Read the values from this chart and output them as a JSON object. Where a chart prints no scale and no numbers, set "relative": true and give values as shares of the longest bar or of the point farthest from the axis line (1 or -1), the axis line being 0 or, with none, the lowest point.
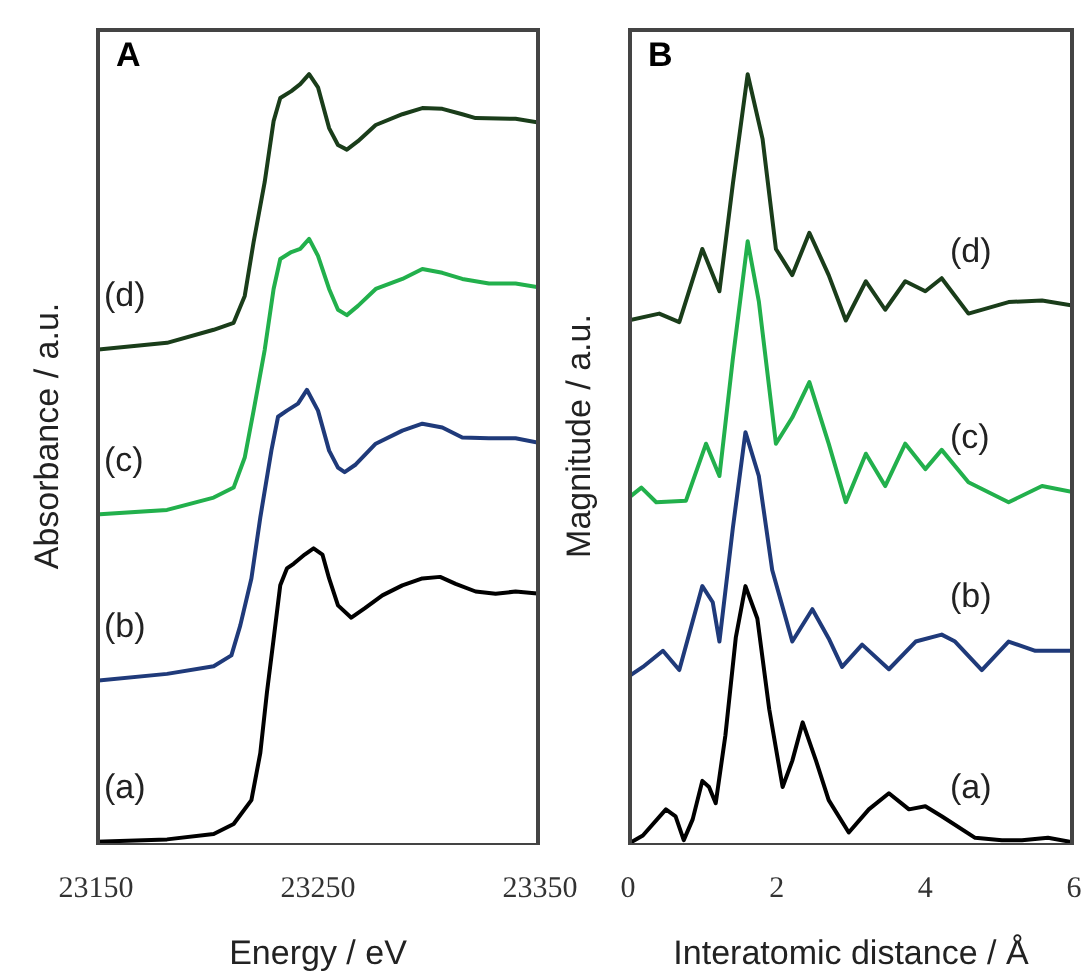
{
  "chart_data": [
    {
      "type": "line",
      "title": "A",
      "xlabel": "Energy / eV",
      "ylabel": "Absorbance / a.u.",
      "relative": true,
      "xlim": [
        23150,
        23350
      ],
      "xticks": [
        23150,
        23250,
        23350
      ],
      "marker": "none",
      "series": [
        {
          "name": "(a)",
          "color": "#000000",
          "x": [
            23150,
            23182,
            23203,
            23212,
            23220,
            23224,
            23227,
            23230,
            23233,
            23236,
            23239,
            23244,
            23248,
            23252,
            23255,
            23259,
            23265,
            23271,
            23279,
            23288,
            23297,
            23305,
            23312,
            23321,
            23330,
            23339,
            23350
          ],
          "values": [
            0.003,
            0.006,
            0.013,
            0.026,
            0.057,
            0.118,
            0.197,
            0.266,
            0.336,
            0.358,
            0.364,
            0.376,
            0.384,
            0.376,
            0.345,
            0.31,
            0.294,
            0.306,
            0.323,
            0.336,
            0.345,
            0.347,
            0.338,
            0.328,
            0.325,
            0.328,
            0.325
          ]
        },
        {
          "name": "(b)",
          "color": "#1f3a7a",
          "x": [
            23150,
            23182,
            23203,
            23211,
            23215,
            23220,
            23224,
            23229,
            23232,
            23236,
            23241,
            23245,
            23250,
            23255,
            23259,
            23262,
            23267,
            23276,
            23288,
            23297,
            23306,
            23315,
            23327,
            23339,
            23350
          ],
          "values": [
            0.212,
            0.221,
            0.231,
            0.245,
            0.284,
            0.345,
            0.424,
            0.511,
            0.555,
            0.563,
            0.572,
            0.59,
            0.563,
            0.511,
            0.489,
            0.483,
            0.493,
            0.52,
            0.537,
            0.546,
            0.541,
            0.528,
            0.527,
            0.527,
            0.521
          ]
        },
        {
          "name": "(c)",
          "color": "#22b04c",
          "x": [
            23150,
            23182,
            23203,
            23212,
            23217,
            23221,
            23226,
            23230,
            23233,
            23238,
            23242,
            23246,
            23250,
            23255,
            23259,
            23263,
            23268,
            23276,
            23288,
            23297,
            23306,
            23315,
            23327,
            23339,
            23350
          ],
          "values": [
            0.428,
            0.434,
            0.45,
            0.463,
            0.502,
            0.563,
            0.642,
            0.721,
            0.76,
            0.769,
            0.773,
            0.786,
            0.764,
            0.721,
            0.694,
            0.687,
            0.699,
            0.721,
            0.734,
            0.747,
            0.742,
            0.734,
            0.728,
            0.728,
            0.723
          ]
        },
        {
          "name": "(d)",
          "color": "#1a3d1a",
          "x": [
            23150,
            23182,
            23203,
            23212,
            23217,
            23221,
            23226,
            23230,
            23233,
            23238,
            23242,
            23246,
            23250,
            23255,
            23259,
            23263,
            23268,
            23276,
            23288,
            23297,
            23306,
            23315,
            23321,
            23339,
            23350
          ],
          "values": [
            0.642,
            0.651,
            0.668,
            0.677,
            0.712,
            0.782,
            0.86,
            0.939,
            0.969,
            0.978,
            0.987,
            1,
            0.983,
            0.93,
            0.908,
            0.902,
            0.913,
            0.934,
            0.948,
            0.956,
            0.955,
            0.948,
            0.943,
            0.942,
            0.937
          ]
        }
      ]
    },
    {
      "type": "line",
      "title": "B",
      "xlabel": "Interatomic distance / Å",
      "ylabel": "Magnitude / a.u.",
      "relative": true,
      "xlim": [
        0,
        6
      ],
      "xticks": [
        0,
        2,
        4,
        6
      ],
      "marker": "none",
      "series": [
        {
          "name": "(a)",
          "color": "#000000",
          "x": [
            0,
            0.2,
            0.51,
            0.64,
            0.75,
            0.87,
            1.0,
            1.09,
            1.18,
            1.31,
            1.45,
            1.58,
            1.74,
            1.9,
            2.08,
            2.21,
            2.35,
            2.53,
            2.7,
            2.97,
            3.24,
            3.51,
            3.78,
            4.0,
            4.22,
            4.67,
            5.03,
            5.3,
            5.65,
            6.0
          ],
          "values": [
            0,
            0.011,
            0.045,
            0.036,
            0.005,
            0.032,
            0.082,
            0.074,
            0.053,
            0.141,
            0.268,
            0.335,
            0.293,
            0.175,
            0.074,
            0.108,
            0.158,
            0.108,
            0.057,
            0.015,
            0.045,
            0.066,
            0.045,
            0.049,
            0.036,
            0.008,
            0.005,
            0.005,
            0.008,
            0.002
          ]
        },
        {
          "name": "(b)",
          "color": "#1f3a7a",
          "x": [
            0,
            0.2,
            0.47,
            0.69,
            1.0,
            1.14,
            1.23,
            1.41,
            1.58,
            1.76,
            1.94,
            2.21,
            2.48,
            2.7,
            2.88,
            3.15,
            3.51,
            3.87,
            4.22,
            4.4,
            4.76,
            5.12,
            5.48,
            6.0
          ],
          "values": [
            0.217,
            0.23,
            0.251,
            0.226,
            0.335,
            0.314,
            0.263,
            0.41,
            0.535,
            0.478,
            0.356,
            0.263,
            0.305,
            0.267,
            0.23,
            0.259,
            0.227,
            0.263,
            0.272,
            0.263,
            0.226,
            0.263,
            0.251,
            0.251
          ]
        },
        {
          "name": "(c)",
          "color": "#22b04c",
          "x": [
            0,
            0.18,
            0.38,
            0.78,
            1.05,
            1.23,
            1.41,
            1.61,
            1.76,
            1.99,
            2.21,
            2.44,
            2.7,
            2.93,
            3.2,
            3.46,
            3.73,
            4.0,
            4.22,
            4.58,
            5.12,
            5.57,
            6.0
          ],
          "values": [
            0.449,
            0.463,
            0.444,
            0.446,
            0.52,
            0.478,
            0.63,
            0.783,
            0.705,
            0.52,
            0.554,
            0.6,
            0.52,
            0.444,
            0.507,
            0.465,
            0.52,
            0.487,
            0.512,
            0.47,
            0.444,
            0.465,
            0.457
          ]
        },
        {
          "name": "(d)",
          "color": "#1a3d1a",
          "x": [
            0,
            0.42,
            0.69,
            1.0,
            1.23,
            1.41,
            1.61,
            1.81,
            1.99,
            2.21,
            2.44,
            2.7,
            2.93,
            3.2,
            3.46,
            3.73,
            4.0,
            4.22,
            4.58,
            5.12,
            5.57,
            6.0
          ],
          "values": [
            0.68,
            0.689,
            0.678,
            0.773,
            0.718,
            0.857,
            1,
            0.916,
            0.773,
            0.739,
            0.794,
            0.739,
            0.68,
            0.731,
            0.694,
            0.731,
            0.718,
            0.735,
            0.689,
            0.704,
            0.706,
            0.699
          ]
        }
      ]
    }
  ]
}
